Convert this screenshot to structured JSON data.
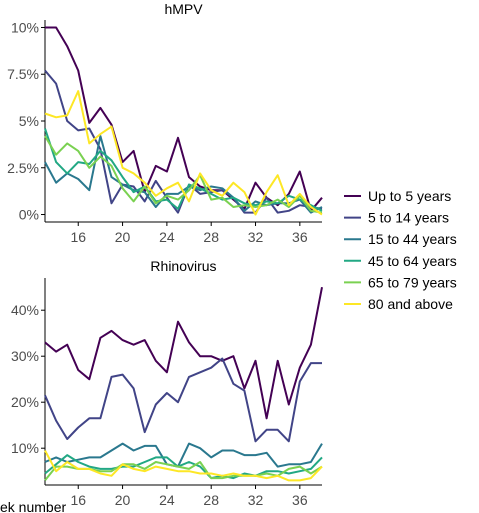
{
  "chart_data": [
    {
      "type": "line",
      "title": "hMPV",
      "xlabel": "",
      "ylabel": "",
      "xlim": [
        13,
        38
      ],
      "ylim": [
        -0.4,
        10.4
      ],
      "x_ticks": [
        16,
        20,
        24,
        28,
        32,
        36
      ],
      "y_ticks": [
        0,
        2.5,
        5,
        7.5,
        10
      ],
      "y_tick_labels": [
        "0%",
        "2.5%",
        "5%",
        "7.5%",
        "10%"
      ],
      "x": [
        13,
        14,
        15,
        16,
        17,
        18,
        19,
        20,
        21,
        22,
        23,
        24,
        25,
        26,
        27,
        28,
        29,
        30,
        31,
        32,
        33,
        34,
        35,
        36,
        37,
        38
      ],
      "series": [
        {
          "name": "Up to 5 years",
          "color": "#440154",
          "values": [
            10.0,
            10.0,
            9.0,
            7.7,
            4.9,
            5.7,
            4.8,
            2.8,
            3.4,
            1.2,
            2.6,
            2.3,
            4.1,
            2.0,
            1.5,
            1.3,
            1.3,
            0.8,
            0.3,
            1.7,
            0.9,
            0.5,
            1.1,
            2.3,
            0.2,
            0.9
          ]
        },
        {
          "name": "5 to 14 years",
          "color": "#414487",
          "values": [
            7.7,
            7.0,
            5.0,
            4.5,
            4.6,
            3.5,
            0.6,
            1.6,
            1.5,
            0.7,
            1.8,
            0.9,
            0.1,
            1.6,
            1.1,
            1.2,
            1.3,
            0.9,
            0.1,
            0.1,
            0.9,
            0.1,
            0.2,
            0.5,
            0.4,
            0.3
          ]
        },
        {
          "name": "15 to 44 years",
          "color": "#2A788E",
          "values": [
            2.8,
            1.7,
            2.2,
            1.9,
            1.3,
            4.2,
            2.0,
            1.6,
            1.3,
            1.2,
            0.4,
            1.1,
            1.1,
            1.5,
            1.3,
            1.5,
            1.4,
            0.9,
            0.2,
            0.7,
            0.5,
            0.6,
            0.6,
            0.8,
            0.1,
            0.4
          ]
        },
        {
          "name": "45 to 64 years",
          "color": "#22A884",
          "values": [
            4.6,
            2.8,
            2.2,
            2.8,
            2.7,
            3.4,
            2.9,
            2.0,
            1.2,
            1.5,
            0.7,
            0.8,
            0.3,
            1.6,
            1.4,
            1.1,
            0.8,
            0.9,
            0.6,
            0.5,
            0.7,
            0.6,
            1.0,
            0.8,
            0.5,
            0.2
          ]
        },
        {
          "name": "65 to 79 years",
          "color": "#7AD151",
          "values": [
            4.2,
            3.2,
            3.8,
            3.4,
            2.5,
            3.1,
            2.6,
            1.4,
            0.7,
            1.5,
            0.6,
            1.0,
            0.8,
            1.3,
            2.1,
            0.8,
            0.9,
            0.4,
            0.5,
            0.4,
            0.5,
            0.8,
            0.4,
            1.0,
            0.2,
            0.1
          ]
        },
        {
          "name": "80 and above",
          "color": "#FDE725",
          "values": [
            5.4,
            5.2,
            5.3,
            6.6,
            3.8,
            4.3,
            4.7,
            2.5,
            2.2,
            1.7,
            1.0,
            1.4,
            1.7,
            0.7,
            2.2,
            1.3,
            1.0,
            1.7,
            1.2,
            0.0,
            1.2,
            2.1,
            0.5,
            1.1,
            0.4,
            0.0
          ]
        }
      ]
    },
    {
      "type": "line",
      "title": "Rhinovirus",
      "xlabel": "",
      "ylabel": "",
      "xlim": [
        13,
        38
      ],
      "ylim": [
        2,
        47
      ],
      "x_ticks": [
        16,
        20,
        24,
        28,
        32,
        36
      ],
      "y_ticks": [
        10,
        20,
        30,
        40
      ],
      "y_tick_labels": [
        "10%",
        "20%",
        "30%",
        "40%"
      ],
      "x": [
        13,
        14,
        15,
        16,
        17,
        18,
        19,
        20,
        21,
        22,
        23,
        24,
        25,
        26,
        27,
        28,
        29,
        30,
        31,
        32,
        33,
        34,
        35,
        36,
        37,
        38
      ],
      "series": [
        {
          "name": "Up to 5 years",
          "color": "#440154",
          "values": [
            33,
            31,
            32.5,
            27,
            25,
            34,
            35.5,
            33.5,
            32.5,
            33.5,
            29,
            26.5,
            37.5,
            33,
            30,
            30,
            29,
            30,
            23,
            29,
            16.5,
            29,
            19.5,
            27.5,
            32.5,
            45
          ]
        },
        {
          "name": "5 to 14 years",
          "color": "#414487",
          "values": [
            21.5,
            16,
            12,
            14.5,
            16.5,
            16.5,
            25.5,
            26,
            23,
            13.5,
            19.5,
            22,
            20,
            25.5,
            26.5,
            27.5,
            29.5,
            24,
            22.5,
            11.5,
            14,
            14,
            11.5,
            24.5,
            28.5,
            28.5
          ]
        },
        {
          "name": "15 to 44 years",
          "color": "#2A788E",
          "values": [
            7,
            8,
            7,
            7.5,
            8,
            8,
            9.5,
            11,
            9.5,
            10.5,
            10.5,
            6.5,
            6,
            11,
            10,
            8,
            9.5,
            9.5,
            8.5,
            8.5,
            9,
            6,
            6.5,
            6.5,
            7,
            11
          ]
        },
        {
          "name": "45 to 64 years",
          "color": "#22A884",
          "values": [
            4.5,
            6.5,
            8.5,
            7,
            6,
            5.5,
            5.5,
            6,
            6,
            7,
            8,
            8,
            6,
            7,
            6,
            3.5,
            4,
            3.5,
            4.5,
            4,
            5,
            5,
            4.5,
            5,
            5.5,
            8
          ]
        },
        {
          "name": "65 to 79 years",
          "color": "#7AD151",
          "values": [
            3,
            6,
            6,
            5.5,
            5.5,
            5,
            5,
            6.5,
            6.5,
            5.5,
            7,
            6.5,
            6,
            5.5,
            7,
            3.5,
            3.5,
            4,
            4,
            4,
            4.5,
            4,
            5.5,
            6,
            4.5,
            6
          ]
        },
        {
          "name": "80 and above",
          "color": "#FDE725",
          "values": [
            9.5,
            5,
            7,
            5.5,
            5.5,
            4.5,
            4,
            6.5,
            5.5,
            5,
            6,
            5.5,
            5,
            5,
            4.5,
            4.5,
            4,
            4.5,
            4,
            4,
            3.5,
            4,
            3,
            3,
            3.5,
            6
          ]
        }
      ]
    }
  ],
  "footer_text": "ek number"
}
